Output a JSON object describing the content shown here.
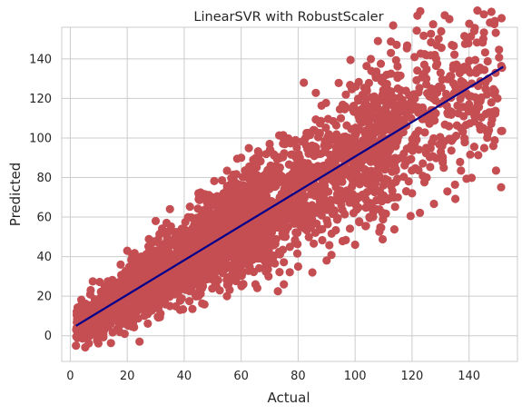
{
  "chart_data": {
    "type": "scatter",
    "title": "LinearSVR with RobustScaler",
    "xlabel": "Actual",
    "ylabel": "Predicted",
    "xlim": [
      -3,
      157
    ],
    "ylim": [
      -13,
      156
    ],
    "xticks": [
      0,
      20,
      40,
      60,
      80,
      100,
      120,
      140
    ],
    "yticks": [
      0,
      20,
      40,
      60,
      80,
      100,
      120,
      140
    ],
    "grid": true,
    "series": [
      {
        "kind": "scatter",
        "color": "#c44e52",
        "x_range": [
          2,
          152
        ],
        "points": [
          [
            108,
            149
          ],
          [
            134,
            147
          ],
          [
            128,
            142
          ],
          [
            140,
            139
          ],
          [
            150,
            120
          ],
          [
            82,
            128
          ],
          [
            110,
            128
          ],
          [
            140,
            117
          ],
          [
            148,
            113
          ],
          [
            145,
            105
          ],
          [
            60,
            90
          ],
          [
            95,
            110
          ],
          [
            115,
            125
          ],
          [
            125,
            130
          ],
          [
            130,
            133
          ],
          [
            20,
            43
          ],
          [
            25,
            40
          ],
          [
            30,
            58
          ],
          [
            35,
            64
          ],
          [
            45,
            72
          ],
          [
            50,
            70
          ],
          [
            70,
            97
          ],
          [
            75,
            55
          ],
          [
            80,
            35
          ],
          [
            85,
            32
          ],
          [
            90,
            38
          ],
          [
            100,
            46
          ],
          [
            105,
            60
          ],
          [
            110,
            62
          ],
          [
            115,
            70
          ],
          [
            120,
            72
          ],
          [
            125,
            95
          ],
          [
            65,
            26
          ],
          [
            75,
            26
          ],
          [
            55,
            20
          ],
          [
            45,
            20
          ],
          [
            35,
            15
          ],
          [
            30,
            14
          ],
          [
            2,
            -5
          ],
          [
            3,
            0
          ],
          [
            3,
            10
          ],
          [
            4,
            16
          ],
          [
            5,
            6
          ],
          [
            8,
            14
          ],
          [
            10,
            18
          ],
          [
            12,
            20
          ],
          [
            15,
            22
          ],
          [
            18,
            25
          ],
          [
            22,
            28
          ],
          [
            28,
            35
          ],
          [
            38,
            45
          ],
          [
            48,
            55
          ],
          [
            58,
            65
          ],
          [
            68,
            75
          ],
          [
            78,
            82
          ],
          [
            88,
            92
          ],
          [
            98,
            100
          ],
          [
            108,
            108
          ],
          [
            118,
            115
          ],
          [
            128,
            122
          ],
          [
            138,
            128
          ]
        ]
      },
      {
        "kind": "line",
        "color": "#00008b",
        "x": [
          2,
          152
        ],
        "y": [
          5,
          136
        ]
      }
    ]
  }
}
